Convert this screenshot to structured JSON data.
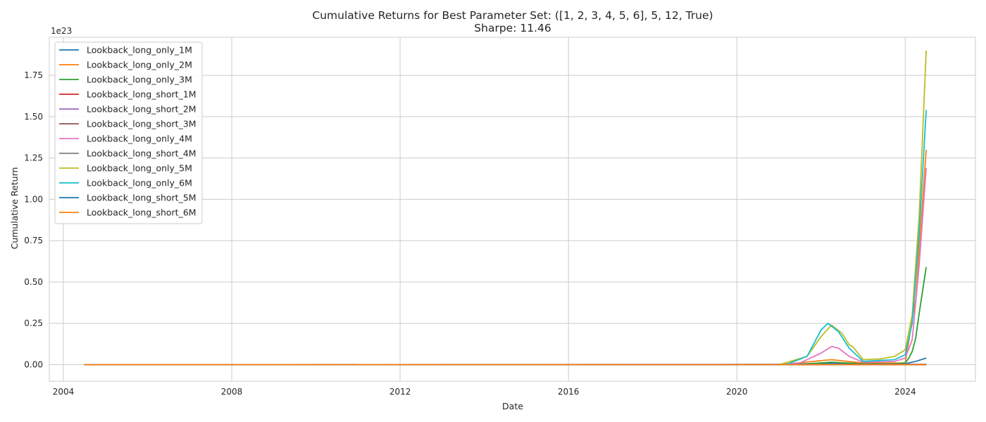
{
  "chart_data": {
    "type": "line",
    "title": "Cumulative Returns for Best Parameter Set: ([1, 2, 3, 4, 5, 6], 5, 12, True)",
    "subtitle": "Sharpe: 11.46",
    "xlabel": "Date",
    "ylabel": "Cumulative Return",
    "y_offset_label": "1e23",
    "y_scale_exponent": 23,
    "x_ticks": [
      "2004",
      "2008",
      "2012",
      "2016",
      "2020",
      "2024"
    ],
    "y_ticks": [
      "0.00",
      "0.25",
      "0.50",
      "0.75",
      "1.00",
      "1.25",
      "1.50",
      "1.75"
    ],
    "xlim": [
      "2003-09-01",
      "2025-09-01"
    ],
    "ylim": [
      -0.1,
      1.98
    ],
    "grid": true,
    "legend_position": "top-left",
    "series": [
      {
        "name": "Lookback_long_only_1M",
        "color": "#1f77b4",
        "points": [
          [
            "2004-07-01",
            0
          ],
          [
            "2021-01-01",
            0
          ],
          [
            "2022-03-01",
            0.01
          ],
          [
            "2023-01-01",
            0.004
          ],
          [
            "2024-01-01",
            0.005
          ],
          [
            "2024-04-01",
            0.02
          ],
          [
            "2024-07-01",
            0.04
          ]
        ]
      },
      {
        "name": "Lookback_long_only_2M",
        "color": "#ff7f0e",
        "points": [
          [
            "2004-07-01",
            0
          ],
          [
            "2021-01-01",
            0
          ],
          [
            "2022-04-01",
            0.03
          ],
          [
            "2023-01-01",
            0.01
          ],
          [
            "2024-01-01",
            0.01
          ],
          [
            "2024-04-01",
            0.4
          ],
          [
            "2024-07-01",
            1.3
          ]
        ]
      },
      {
        "name": "Lookback_long_only_3M",
        "color": "#2ca02c",
        "points": [
          [
            "2004-07-01",
            0
          ],
          [
            "2021-01-01",
            0
          ],
          [
            "2021-09-01",
            0.005
          ],
          [
            "2022-04-01",
            0.015
          ],
          [
            "2023-01-01",
            0.005
          ],
          [
            "2023-10-01",
            0.005
          ],
          [
            "2024-01-01",
            0.01
          ],
          [
            "2024-02-01",
            0.04
          ],
          [
            "2024-03-01",
            0.08
          ],
          [
            "2024-04-01",
            0.16
          ],
          [
            "2024-05-01",
            0.31
          ],
          [
            "2024-07-01",
            0.59
          ]
        ]
      },
      {
        "name": "Lookback_long_short_1M",
        "color": "#d62728",
        "points": [
          [
            "2004-07-01",
            0
          ],
          [
            "2024-07-01",
            0
          ]
        ]
      },
      {
        "name": "Lookback_long_short_2M",
        "color": "#9467bd",
        "points": [
          [
            "2004-07-01",
            0
          ],
          [
            "2024-07-01",
            0.002
          ]
        ]
      },
      {
        "name": "Lookback_long_short_3M",
        "color": "#8c564b",
        "points": [
          [
            "2004-07-01",
            0
          ],
          [
            "2024-07-01",
            0.001
          ]
        ]
      },
      {
        "name": "Lookback_long_only_4M",
        "color": "#e377c2",
        "points": [
          [
            "2004-07-01",
            0
          ],
          [
            "2021-01-01",
            0
          ],
          [
            "2021-07-01",
            0.01
          ],
          [
            "2022-01-01",
            0.07
          ],
          [
            "2022-04-01",
            0.11
          ],
          [
            "2022-06-01",
            0.1
          ],
          [
            "2022-09-01",
            0.05
          ],
          [
            "2023-01-01",
            0.015
          ],
          [
            "2023-10-01",
            0.02
          ],
          [
            "2024-01-01",
            0.04
          ],
          [
            "2024-03-01",
            0.15
          ],
          [
            "2024-05-01",
            0.6
          ],
          [
            "2024-07-01",
            1.19
          ]
        ]
      },
      {
        "name": "Lookback_long_short_4M",
        "color": "#7f7f7f",
        "points": [
          [
            "2004-07-01",
            0
          ],
          [
            "2024-07-01",
            0.001
          ]
        ]
      },
      {
        "name": "Lookback_long_only_5M",
        "color": "#bcbd22",
        "points": [
          [
            "2004-07-01",
            0
          ],
          [
            "2021-01-01",
            0
          ],
          [
            "2021-09-01",
            0.05
          ],
          [
            "2022-01-01",
            0.17
          ],
          [
            "2022-04-01",
            0.24
          ],
          [
            "2022-07-01",
            0.19
          ],
          [
            "2022-09-01",
            0.12
          ],
          [
            "2022-10-01",
            0.11
          ],
          [
            "2023-01-01",
            0.03
          ],
          [
            "2023-06-01",
            0.035
          ],
          [
            "2023-10-01",
            0.05
          ],
          [
            "2024-01-01",
            0.09
          ],
          [
            "2024-03-01",
            0.3
          ],
          [
            "2024-05-01",
            0.9
          ],
          [
            "2024-07-01",
            1.9
          ]
        ]
      },
      {
        "name": "Lookback_long_only_6M",
        "color": "#17becf",
        "points": [
          [
            "2004-07-01",
            0
          ],
          [
            "2021-03-01",
            0
          ],
          [
            "2021-09-01",
            0.05
          ],
          [
            "2022-01-01",
            0.21
          ],
          [
            "2022-03-01",
            0.25
          ],
          [
            "2022-06-01",
            0.2
          ],
          [
            "2022-09-01",
            0.1
          ],
          [
            "2023-01-01",
            0.02
          ],
          [
            "2023-10-01",
            0.03
          ],
          [
            "2024-01-01",
            0.06
          ],
          [
            "2024-03-01",
            0.25
          ],
          [
            "2024-05-01",
            0.8
          ],
          [
            "2024-07-01",
            1.54
          ]
        ]
      },
      {
        "name": "Lookback_long_short_5M",
        "color": "#1f77b4",
        "points": [
          [
            "2004-07-01",
            0
          ],
          [
            "2024-07-01",
            0
          ]
        ]
      },
      {
        "name": "Lookback_long_short_6M",
        "color": "#ff7f0e",
        "points": [
          [
            "2004-07-01",
            0
          ],
          [
            "2024-07-01",
            0
          ]
        ]
      }
    ]
  }
}
